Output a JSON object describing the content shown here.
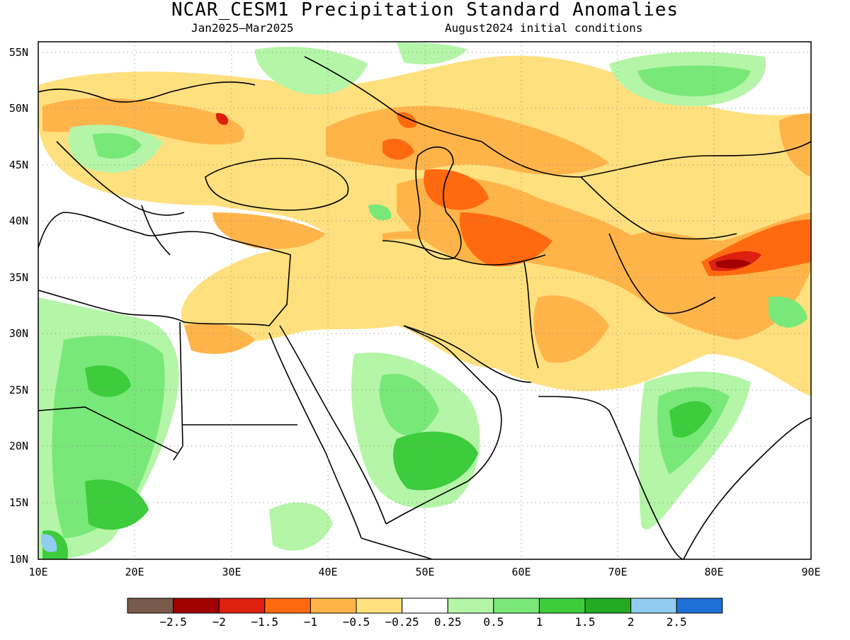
{
  "title": "NCAR_CESM1 Precipitation Standard Anomalies",
  "subtitle_left": "Jan2025–Mar2025",
  "subtitle_right": "August2024 initial conditions",
  "map": {
    "lon_range": [
      10,
      90
    ],
    "lat_range": [
      10,
      56
    ],
    "lon_ticks": [
      "10E",
      "20E",
      "30E",
      "40E",
      "50E",
      "60E",
      "70E",
      "80E",
      "90E"
    ],
    "lat_ticks": [
      "10N",
      "15N",
      "20N",
      "25N",
      "30N",
      "35N",
      "40N",
      "45N",
      "50N",
      "55N"
    ],
    "grid": "dotted"
  },
  "colorbar": {
    "colors": [
      "#7a5a4a",
      "#a00000",
      "#dd2010",
      "#ff6a10",
      "#ffb44a",
      "#ffe07e",
      "#ffffff",
      "#b4f5a8",
      "#78e878",
      "#3ccc3c",
      "#22aa22",
      "#90cdf0",
      "#1f6fd6"
    ],
    "labels": [
      "−2.5",
      "−2",
      "−1.5",
      "−1",
      "−0.5",
      "−0.25",
      "0.25",
      "0.5",
      "1",
      "1.5",
      "2",
      "2.5"
    ]
  }
}
